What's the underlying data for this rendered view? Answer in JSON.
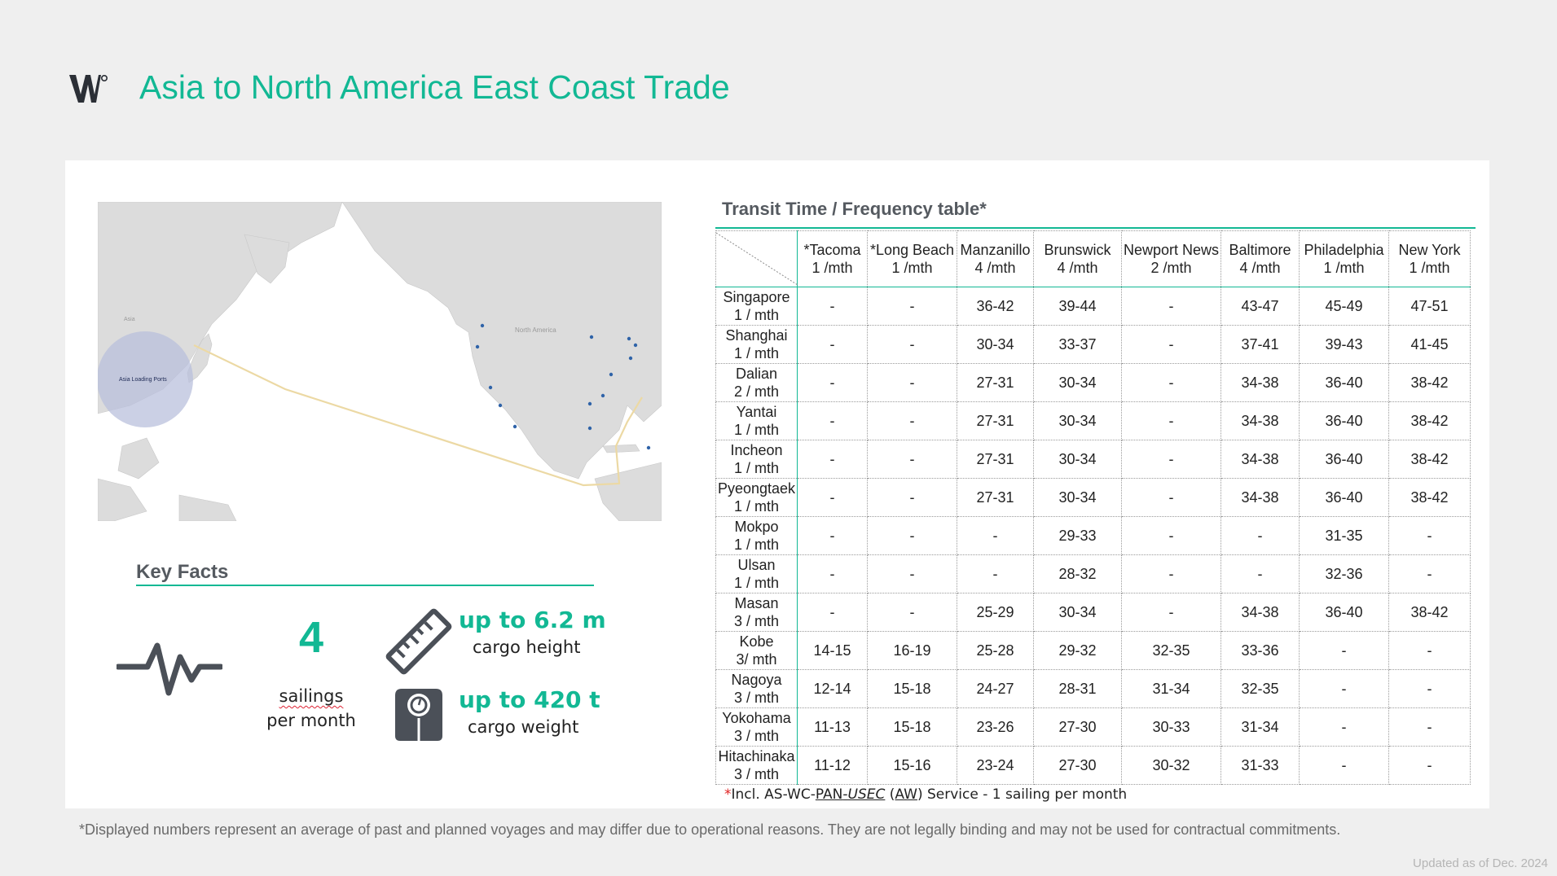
{
  "header": {
    "logo_text": "W°",
    "title": "Asia to North America East Coast Trade"
  },
  "map": {
    "labels": {
      "asia_loading_ports": "Asia Loading Ports",
      "asia": "Asia",
      "north_america": "North America"
    },
    "colors": {
      "route": "#ecd9a4",
      "circle": "#b9c0dc",
      "ports": "#2f63a8",
      "land": "#dcdcdc"
    }
  },
  "key_facts": {
    "title": "Key Facts",
    "sailings_value": "4",
    "sailings_line1": "sailings",
    "sailings_line2": "per month",
    "height_value": "up to 6.2 m",
    "height_label": "cargo height",
    "weight_value": "up to 420 t",
    "weight_label": "cargo weight",
    "icons": [
      "pulse-icon",
      "ruler-icon",
      "scale-icon"
    ]
  },
  "table": {
    "title": "Transit Time / Frequency table*",
    "columns": [
      {
        "name": "*Tacoma",
        "freq": "1 /mth"
      },
      {
        "name": "*Long Beach",
        "freq": "1 /mth"
      },
      {
        "name": "Manzanillo",
        "freq": "4 /mth"
      },
      {
        "name": "Brunswick",
        "freq": "4 /mth"
      },
      {
        "name": "Newport News",
        "freq": "2 /mth"
      },
      {
        "name": "Baltimore",
        "freq": "4 /mth"
      },
      {
        "name": "Philadelphia",
        "freq": "1 /mth"
      },
      {
        "name": "New York",
        "freq": "1 /mth"
      }
    ],
    "rows": [
      {
        "port": "Singapore",
        "freq": "1 / mth",
        "cells": [
          "-",
          "-",
          "36-42",
          "39-44",
          "-",
          "43-47",
          "45-49",
          "47-51"
        ]
      },
      {
        "port": "Shanghai",
        "freq": "1 / mth",
        "cells": [
          "-",
          "-",
          "30-34",
          "33-37",
          "-",
          "37-41",
          "39-43",
          "41-45"
        ]
      },
      {
        "port": "Dalian",
        "freq": "2 / mth",
        "cells": [
          "-",
          "-",
          "27-31",
          "30-34",
          "-",
          "34-38",
          "36-40",
          "38-42"
        ]
      },
      {
        "port": "Yantai",
        "freq": "1 / mth",
        "cells": [
          "-",
          "-",
          "27-31",
          "30-34",
          "-",
          "34-38",
          "36-40",
          "38-42"
        ]
      },
      {
        "port": "Incheon",
        "freq": "1  / mth",
        "cells": [
          "-",
          "-",
          "27-31",
          "30-34",
          "-",
          "34-38",
          "36-40",
          "38-42"
        ]
      },
      {
        "port": "Pyeongtaek",
        "freq": "1 / mth",
        "cells": [
          "-",
          "-",
          "27-31",
          "30-34",
          "-",
          "34-38",
          "36-40",
          "38-42"
        ]
      },
      {
        "port": "Mokpo",
        "freq": "1 / mth",
        "cells": [
          "-",
          "-",
          "-",
          "29-33",
          "-",
          "-",
          "31-35",
          "-"
        ]
      },
      {
        "port": "Ulsan",
        "freq": "1 / mth",
        "cells": [
          "-",
          "-",
          "-",
          "28-32",
          "-",
          "-",
          "32-36",
          "-"
        ]
      },
      {
        "port": "Masan",
        "freq": "3 / mth",
        "cells": [
          "-",
          "-",
          "25-29",
          "30-34",
          "-",
          "34-38",
          "36-40",
          "38-42"
        ]
      },
      {
        "port": "Kobe",
        "freq": "3/ mth",
        "cells": [
          "14-15",
          "16-19",
          "25-28",
          "29-32",
          "32-35",
          "33-36",
          "-",
          "-"
        ]
      },
      {
        "port": "Nagoya",
        "freq": "3 / mth",
        "cells": [
          "12-14",
          "15-18",
          "24-27",
          "28-31",
          "31-34",
          "32-35",
          "-",
          "-"
        ]
      },
      {
        "port": "Yokohama",
        "freq": "3 / mth",
        "cells": [
          "11-13",
          "15-18",
          "23-26",
          "27-30",
          "30-33",
          "31-34",
          "-",
          "-"
        ]
      },
      {
        "port": "Hitachinaka",
        "freq": "3 / mth",
        "cells": [
          "11-12",
          "15-16",
          "23-24",
          "27-30",
          "30-32",
          "31-33",
          "-",
          "-"
        ]
      }
    ],
    "note": {
      "star": "*",
      "prefix": "Incl. AS-WC-",
      "pan": "PAN",
      "dash": "-",
      "usec": "USEC",
      "open": " (",
      "aw": "AW",
      "suffix": ") Service - 1 sailing per month"
    }
  },
  "footer": {
    "disclaimer": "*Displayed numbers represent an average of past and planned voyages and may differ due to operational reasons. They are not legally binding and may not be used for contractual commitments.",
    "updated": "Updated as of Dec. 2024"
  },
  "colors": {
    "accent": "#12b894",
    "heading": "#555a60",
    "icon": "#4b5058"
  }
}
